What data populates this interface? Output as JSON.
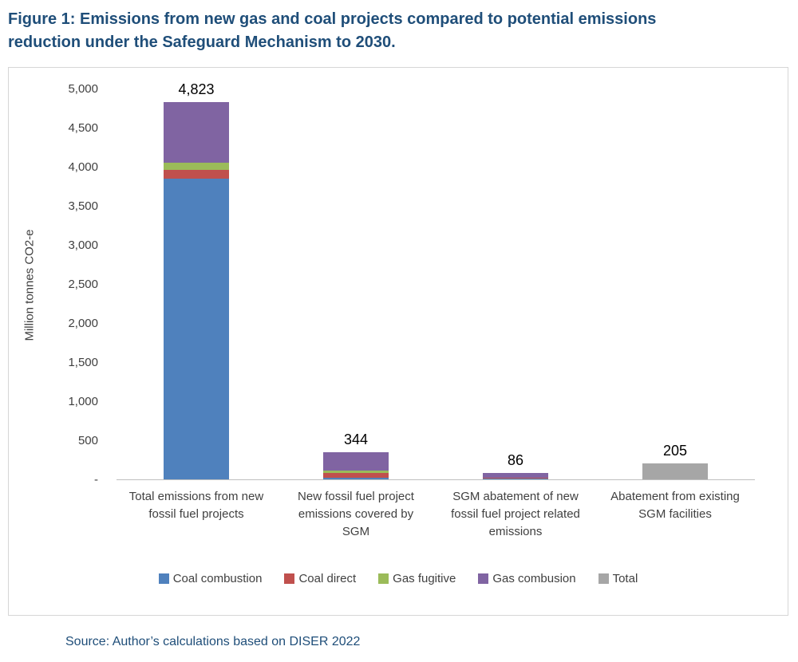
{
  "figure": {
    "title": "Figure 1: Emissions from new gas and coal projects compared to potential emissions reduction under the Safeguard Mechanism to 2030.",
    "source": "Source: Author’s calculations based on DISER 2022"
  },
  "chart_data": {
    "type": "bar",
    "stacked": true,
    "title": "Emissions from new gas and coal projects compared to potential emissions reduction under the Safeguard Mechanism to 2030",
    "xlabel": "",
    "ylabel": "Million tonnes CO2-e",
    "ylim": [
      0,
      5000
    ],
    "grid": false,
    "legend_position": "bottom",
    "yticks": [
      {
        "value": 0,
        "label": "-"
      },
      {
        "value": 500,
        "label": "500"
      },
      {
        "value": 1000,
        "label": "1,000"
      },
      {
        "value": 1500,
        "label": "1,500"
      },
      {
        "value": 2000,
        "label": "2,000"
      },
      {
        "value": 2500,
        "label": "2,500"
      },
      {
        "value": 3000,
        "label": "3,000"
      },
      {
        "value": 3500,
        "label": "3,500"
      },
      {
        "value": 4000,
        "label": "4,000"
      },
      {
        "value": 4500,
        "label": "4,500"
      },
      {
        "value": 5000,
        "label": "5,000"
      }
    ],
    "categories": [
      "Total emissions from new fossil fuel projects",
      "New fossil fuel project emissions covered by SGM",
      "SGM abatement of new fossil fuel project related emissions",
      "Abatement from existing SGM facilities"
    ],
    "bar_totals": [
      4823,
      344,
      86,
      205
    ],
    "bar_total_labels": [
      "4,823",
      "344",
      "86",
      "205"
    ],
    "series": [
      {
        "name": "Coal combustion",
        "color": "#4F81BD",
        "values": [
          3850,
          25,
          8,
          0
        ]
      },
      {
        "name": "Coal direct",
        "color": "#C0504D",
        "values": [
          110,
          60,
          8,
          0
        ]
      },
      {
        "name": "Gas fugitive",
        "color": "#9BBB59",
        "values": [
          90,
          30,
          8,
          0
        ]
      },
      {
        "name": "Gas combusion",
        "color": "#8064A2",
        "values": [
          773,
          229,
          62,
          0
        ]
      },
      {
        "name": "Total",
        "color": "#A6A6A6",
        "values": [
          0,
          0,
          0,
          205
        ]
      }
    ],
    "colors": {
      "title_navy": "#1F4E79",
      "axis_text": "#404040",
      "axis_line": "#BFBFBF",
      "chart_border": "#D6D6D6"
    }
  }
}
